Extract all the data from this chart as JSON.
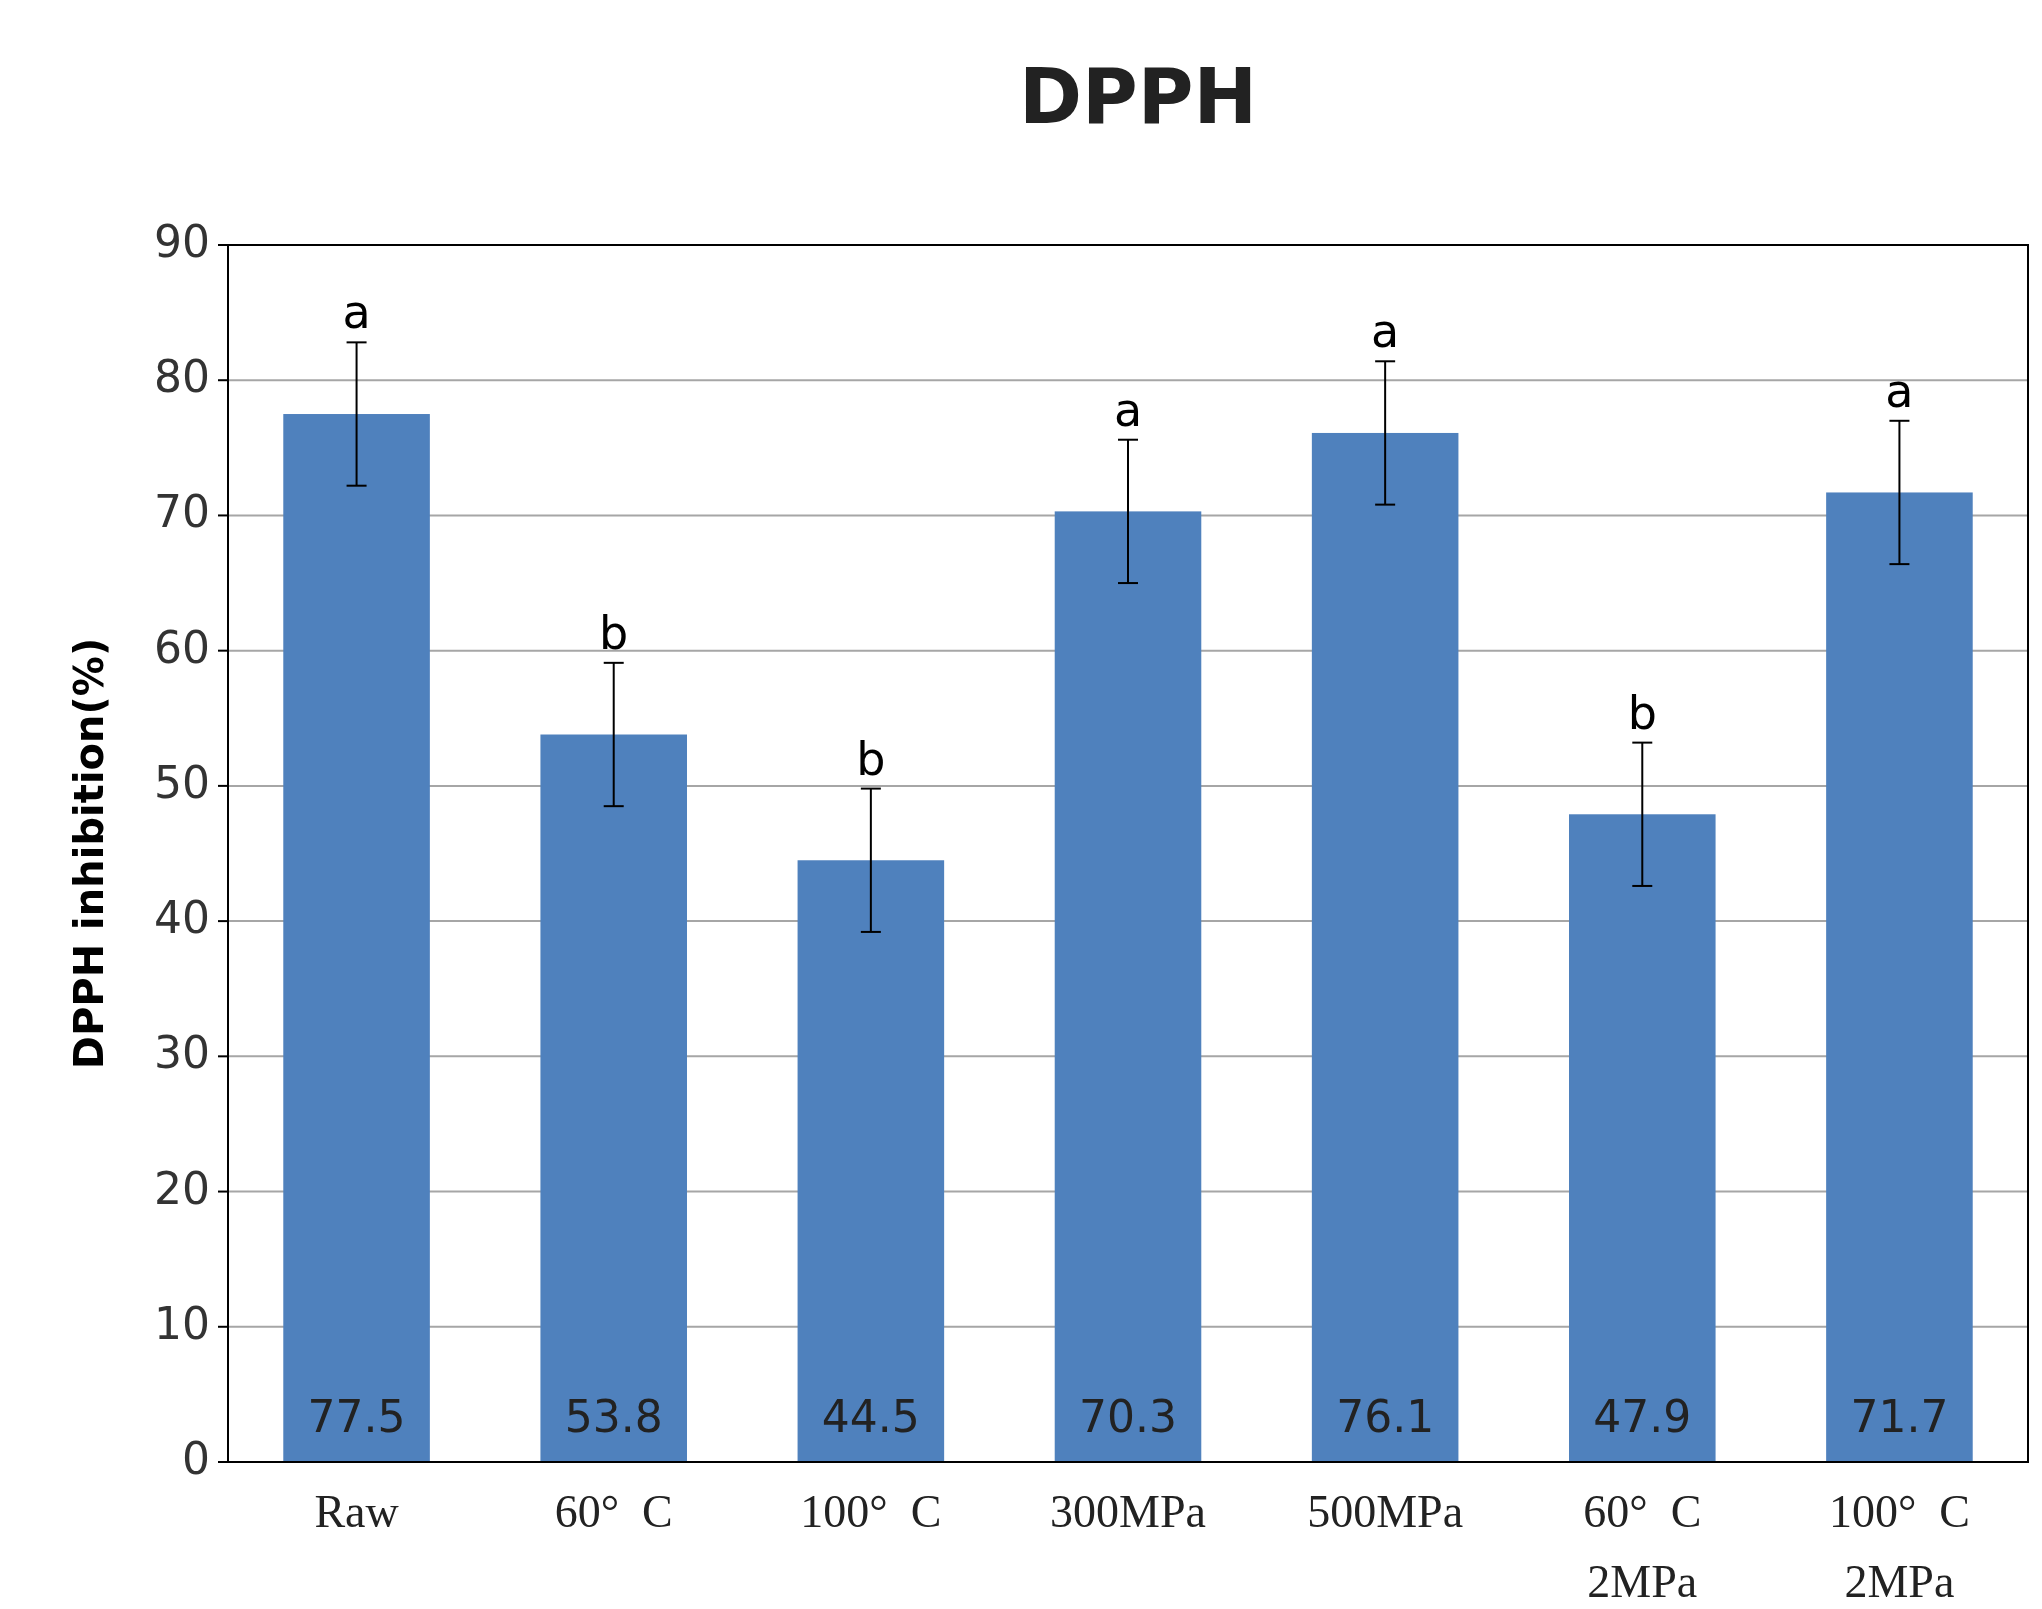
{
  "chart_data": {
    "type": "bar",
    "title": "DPPH",
    "ylabel": "DPPH inhibition(%)",
    "categories": [
      "Raw",
      "60°  C",
      "100°  C",
      "300MPa",
      "500MPa",
      "60°  C\n2MPa",
      "100°  C\n2MPa"
    ],
    "values": [
      77.5,
      53.8,
      44.5,
      70.3,
      76.1,
      47.9,
      71.7
    ],
    "errors": [
      5.3,
      5.3,
      5.3,
      5.3,
      5.3,
      5.3,
      5.3
    ],
    "color": "#4f81bd",
    "ylim": [
      0,
      90
    ],
    "yticks": [
      0,
      10,
      20,
      30,
      40,
      50,
      60,
      70,
      80,
      90
    ],
    "grid": "y",
    "data_labels": true,
    "annotations": [
      "a",
      "b",
      "b",
      "a",
      "a",
      "b",
      "a"
    ]
  }
}
